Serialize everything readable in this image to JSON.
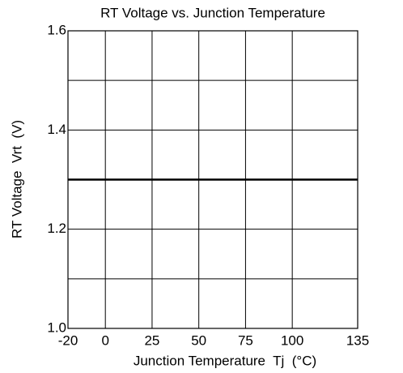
{
  "chart_data": {
    "type": "line",
    "title": "RT Voltage vs. Junction Temperature",
    "x_label": "Junction Temperature  Tj  (°C)",
    "y_label": "RT Voltage  Vrt  (V)",
    "x": [
      -20,
      135
    ],
    "series": [
      {
        "name": "Vrt",
        "color": "#000000",
        "values": [
          1.3,
          1.3
        ]
      }
    ],
    "xlim": [
      -20,
      135
    ],
    "xticks": [
      -20,
      0,
      25,
      50,
      75,
      100,
      135
    ],
    "ylim": [
      1,
      1.6
    ],
    "yticks": [
      {
        "value": 1,
        "label": "1.0"
      },
      1.2,
      1.4,
      1.6
    ],
    "yminor": [
      1.1,
      1.3,
      1.5
    ],
    "grid": true
  }
}
